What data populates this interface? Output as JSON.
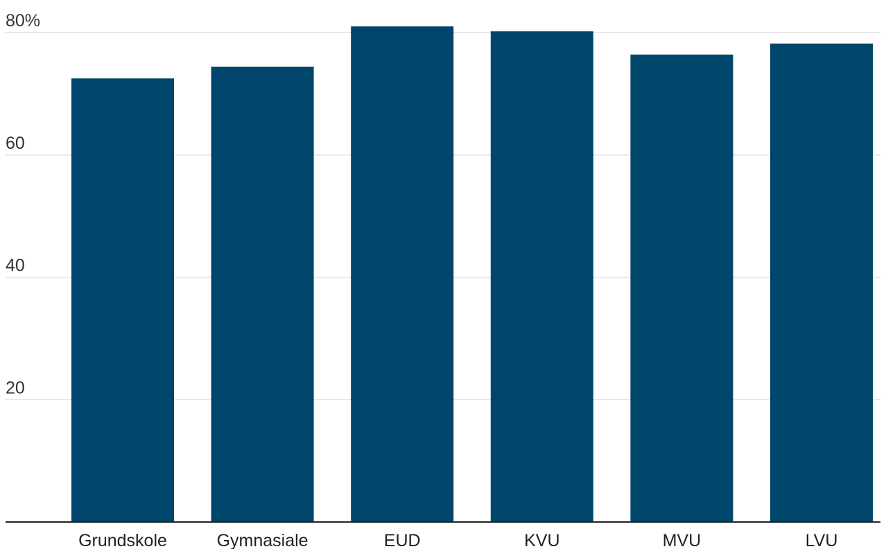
{
  "chart_data": {
    "type": "bar",
    "categories": [
      "Grundskole",
      "Gymnasiale",
      "EUD",
      "KVU",
      "MVU",
      "LVU"
    ],
    "values": [
      72.5,
      74.4,
      81.0,
      80.2,
      76.4,
      78.2
    ],
    "ylim": [
      0,
      80
    ],
    "y_ticks": [
      20,
      40,
      60,
      80
    ],
    "y_tick_labels": [
      "20",
      "40",
      "60",
      "80%"
    ],
    "grid": true,
    "legend": "none"
  },
  "colors": {
    "bar": "#00456b",
    "grid": "#e3e3e3",
    "axis": "#222222"
  }
}
